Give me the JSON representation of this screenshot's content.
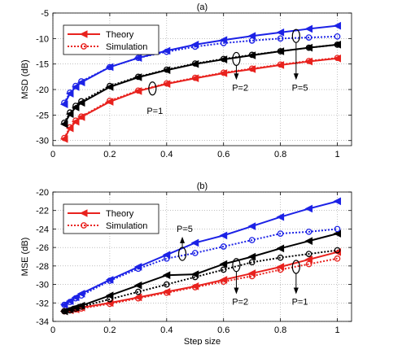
{
  "chart_data": [
    {
      "type": "line",
      "panel_label": "(a)",
      "xlabel": "",
      "ylabel": "MSD (dB)",
      "xlim": [
        0,
        1.05
      ],
      "ylim": [
        -31,
        -5
      ],
      "xticks": [
        0,
        0.2,
        0.4,
        0.6,
        0.8,
        1
      ],
      "xtick_labels": [
        "0",
        "0.2",
        "0.4",
        "0.6",
        "0.8",
        "1"
      ],
      "yticks": [
        -30,
        -25,
        -20,
        -15,
        -10,
        -5
      ],
      "ytick_labels": [
        "-30",
        "-25",
        "-20",
        "-15",
        "-10",
        "-5"
      ],
      "grid": true,
      "legend": {
        "position": "top-left",
        "entries": [
          "Theory",
          "Simulation"
        ]
      },
      "x": [
        0.04,
        0.06,
        0.08,
        0.1,
        0.2,
        0.3,
        0.4,
        0.5,
        0.6,
        0.7,
        0.8,
        0.9,
        1.0
      ],
      "series": [
        {
          "group": "P=1",
          "kind": "theory",
          "color": "#e8221e",
          "values": [
            -29.7,
            -27.6,
            -26.3,
            -25.4,
            -22.4,
            -20.3,
            -18.9,
            -17.8,
            -16.8,
            -16.0,
            -15.2,
            -14.5,
            -13.9
          ]
        },
        {
          "group": "P=1",
          "kind": "simulation",
          "color": "#e8221e",
          "values": [
            -29.5,
            -27.4,
            -26.1,
            -25.3,
            -22.2,
            -20.2,
            -18.8,
            -17.7,
            -16.7,
            -15.9,
            -15.1,
            -14.4,
            -13.8
          ]
        },
        {
          "group": "P=2",
          "kind": "theory",
          "color": "#000000",
          "values": [
            -26.8,
            -24.8,
            -23.5,
            -22.6,
            -19.5,
            -17.6,
            -16.2,
            -15.0,
            -14.1,
            -13.3,
            -12.5,
            -11.8,
            -11.2
          ]
        },
        {
          "group": "P=2",
          "kind": "simulation",
          "color": "#000000",
          "values": [
            -26.5,
            -24.5,
            -23.2,
            -22.3,
            -19.3,
            -17.5,
            -16.1,
            -14.9,
            -14.0,
            -13.2,
            -12.5,
            -11.8,
            -11.2
          ]
        },
        {
          "group": "P=5",
          "kind": "theory",
          "color": "#1c22e6",
          "values": [
            -22.9,
            -20.8,
            -19.5,
            -18.6,
            -15.6,
            -13.8,
            -12.4,
            -11.2,
            -10.3,
            -9.5,
            -8.8,
            -8.1,
            -7.5
          ]
        },
        {
          "group": "P=5",
          "kind": "simulation",
          "color": "#1c22e6",
          "values": [
            -22.6,
            -20.6,
            -19.3,
            -18.4,
            -15.6,
            -13.8,
            -12.6,
            -11.6,
            -10.9,
            -10.4,
            -10.0,
            -9.8,
            -9.6
          ]
        }
      ],
      "annotations": [
        {
          "text": "P=1",
          "ellipse_at": [
            0.35,
            -19.8
          ],
          "label_at": [
            0.33,
            -24.8
          ],
          "arrow": "none"
        },
        {
          "text": "P=2",
          "ellipse_at": [
            0.645,
            -14.0
          ],
          "label_at": [
            0.63,
            -20.2
          ],
          "arrow": "down"
        },
        {
          "text": "P=5",
          "ellipse_at": [
            0.855,
            -9.5
          ],
          "label_at": [
            0.84,
            -20.2
          ],
          "arrow": "down"
        }
      ]
    },
    {
      "type": "line",
      "panel_label": "(b)",
      "xlabel": "Step size",
      "ylabel": "MSE (dB)",
      "xlim": [
        0,
        1.05
      ],
      "ylim": [
        -34,
        -20
      ],
      "xticks": [
        0,
        0.2,
        0.4,
        0.6,
        0.8,
        1
      ],
      "xtick_labels": [
        "0",
        "0.2",
        "0.4",
        "0.6",
        "0.8",
        "1"
      ],
      "yticks": [
        -34,
        -32,
        -30,
        -28,
        -26,
        -24,
        -22,
        -20
      ],
      "ytick_labels": [
        "-34",
        "-32",
        "-30",
        "-28",
        "-26",
        "-24",
        "-22",
        "-20"
      ],
      "grid": true,
      "legend": {
        "position": "top-left",
        "entries": [
          "Theory",
          "Simulation"
        ]
      },
      "x": [
        0.04,
        0.06,
        0.08,
        0.1,
        0.2,
        0.3,
        0.4,
        0.5,
        0.6,
        0.7,
        0.8,
        0.9,
        1.0
      ],
      "series": [
        {
          "group": "P=1",
          "kind": "theory",
          "color": "#e8221e",
          "values": [
            -32.9,
            -32.8,
            -32.7,
            -32.5,
            -32.0,
            -31.4,
            -30.8,
            -30.2,
            -29.5,
            -28.8,
            -28.1,
            -27.3,
            -26.5
          ]
        },
        {
          "group": "P=1",
          "kind": "simulation",
          "color": "#e8221e",
          "values": [
            -32.9,
            -32.8,
            -32.7,
            -32.6,
            -32.1,
            -31.5,
            -30.9,
            -30.3,
            -29.7,
            -29.1,
            -28.4,
            -27.8,
            -27.2
          ]
        },
        {
          "group": "P=2",
          "kind": "theory",
          "color": "#000000",
          "values": [
            -32.9,
            -32.7,
            -32.5,
            -32.3,
            -31.2,
            -30.1,
            -29.0,
            -28.9,
            -27.8,
            -27.0,
            -26.1,
            -25.3,
            -24.5
          ]
        },
        {
          "group": "P=2",
          "kind": "simulation",
          "color": "#000000",
          "values": [
            -32.9,
            -32.8,
            -32.6,
            -32.4,
            -31.6,
            -30.8,
            -30.0,
            -29.2,
            -28.4,
            -27.6,
            -27.1,
            -26.7,
            -26.3
          ]
        },
        {
          "group": "P=5",
          "kind": "theory",
          "color": "#1c22e6",
          "values": [
            -32.2,
            -31.8,
            -31.4,
            -31.0,
            -29.5,
            -28.1,
            -26.8,
            -25.5,
            -24.7,
            -23.7,
            -22.7,
            -21.8,
            -21.0
          ]
        },
        {
          "group": "P=5",
          "kind": "simulation",
          "color": "#1c22e6",
          "values": [
            -32.2,
            -31.9,
            -31.5,
            -31.2,
            -29.6,
            -28.3,
            -27.2,
            -26.6,
            -25.9,
            -25.2,
            -24.5,
            -24.3,
            -24.0
          ]
        }
      ],
      "annotations": [
        {
          "text": "P=5",
          "ellipse_at": [
            0.455,
            -26.7
          ],
          "label_at": [
            0.435,
            -24.3
          ],
          "arrow": "up"
        },
        {
          "text": "P=2",
          "ellipse_at": [
            0.645,
            -27.9
          ],
          "label_at": [
            0.63,
            -32.2
          ],
          "arrow": "down"
        },
        {
          "text": "P=1",
          "ellipse_at": [
            0.855,
            -28.1
          ],
          "label_at": [
            0.84,
            -32.2
          ],
          "arrow": "down"
        }
      ]
    }
  ]
}
